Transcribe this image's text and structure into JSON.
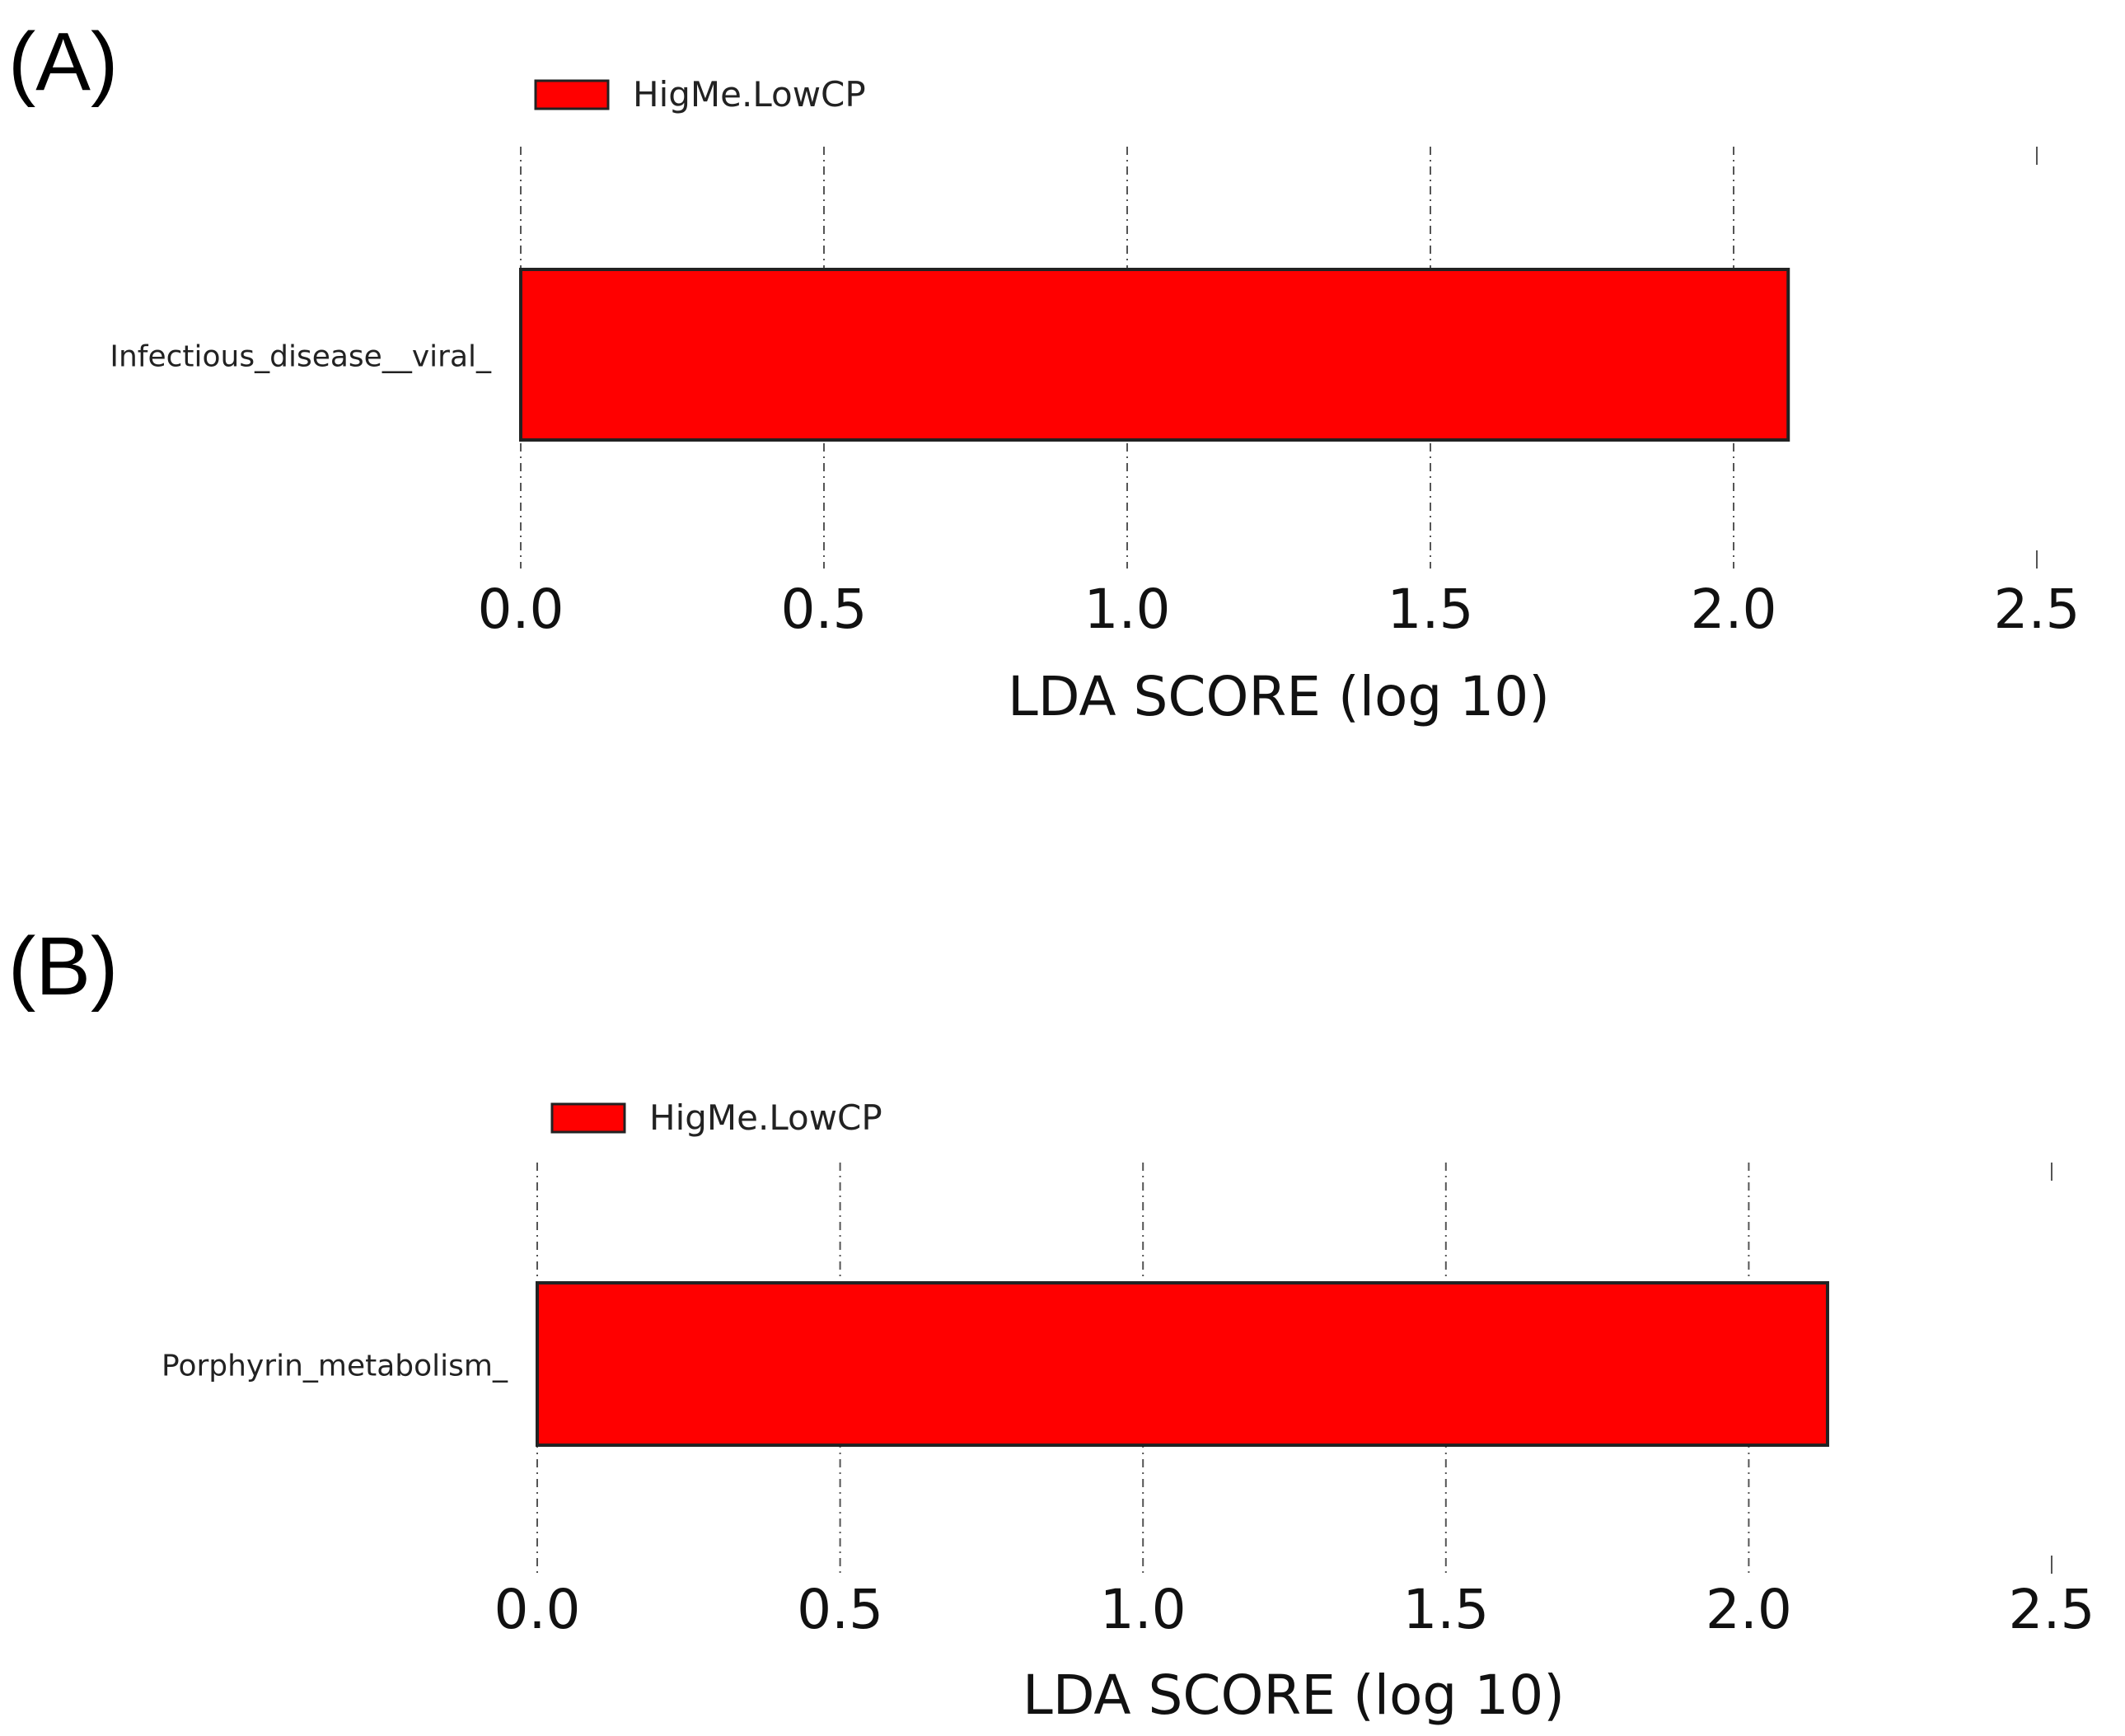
{
  "panels": [
    {
      "label": "(A)"
    },
    {
      "label": "(B)"
    }
  ],
  "colors": {
    "bar": "#ff0000",
    "edge": "#222222",
    "grid": "#555555"
  },
  "chart_data": [
    {
      "type": "bar",
      "orientation": "horizontal",
      "categories": [
        "Infectious_disease__viral_"
      ],
      "series": [
        {
          "name": "HigMe.LowCP",
          "values": [
            2.09
          ]
        }
      ],
      "xlabel": "LDA SCORE (log 10)",
      "ylabel": "",
      "xlim": [
        0,
        2.5
      ],
      "xticks": [
        "0.0",
        "0.5",
        "1.0",
        "1.5",
        "2.0",
        "2.5"
      ],
      "grid": true,
      "legend": "top-left"
    },
    {
      "type": "bar",
      "orientation": "horizontal",
      "categories": [
        "Porphyrin_metabolism_"
      ],
      "series": [
        {
          "name": "HigMe.LowCP",
          "values": [
            2.13
          ]
        }
      ],
      "xlabel": "LDA SCORE (log 10)",
      "ylabel": "",
      "xlim": [
        0,
        2.5
      ],
      "xticks": [
        "0.0",
        "0.5",
        "1.0",
        "1.5",
        "2.0",
        "2.5"
      ],
      "grid": true,
      "legend": "top-left"
    }
  ]
}
